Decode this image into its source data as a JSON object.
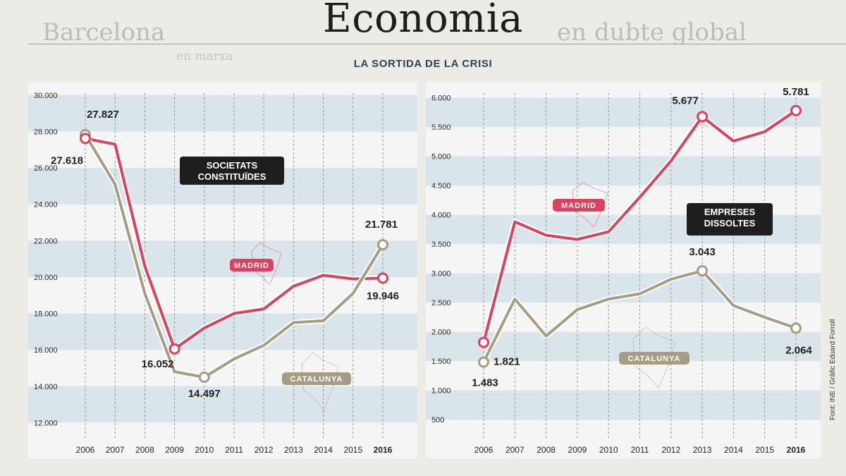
{
  "page": {
    "section_title": "Economia",
    "headline_fragments": [
      "Barcelona",
      "en marxa",
      "en dubte global"
    ],
    "subtitle": "LA SORTIDA DE LA CRISI",
    "credit": "Font: INE / Gràfic Eduard Forroll"
  },
  "chart_data": [
    {
      "type": "line",
      "title": "SOCIETATS CONSTITUÏDES",
      "xlabel": "",
      "ylabel": "",
      "categories": [
        "2006",
        "2007",
        "2008",
        "2009",
        "2010",
        "2011",
        "2012",
        "2013",
        "2014",
        "2015",
        "2016"
      ],
      "yticks": [
        12000,
        14000,
        16000,
        18000,
        20000,
        22000,
        24000,
        26000,
        28000,
        30000
      ],
      "ytick_labels": [
        "12.000",
        "14.000",
        "16.000",
        "18.000",
        "20.000",
        "22.000",
        "24.000",
        "26.000",
        "28.000",
        "30.000"
      ],
      "ylim": [
        11200,
        30500
      ],
      "grid": true,
      "series": [
        {
          "name": "MADRID",
          "color": "#d9435f",
          "values": [
            27618,
            27300,
            20600,
            16052,
            17200,
            18000,
            18250,
            19500,
            20100,
            19900,
            19946
          ]
        },
        {
          "name": "CATALUNYA",
          "color": "#a59e85",
          "values": [
            27827,
            25100,
            19100,
            14800,
            14497,
            15500,
            16250,
            17500,
            17600,
            19100,
            21781
          ]
        }
      ],
      "data_labels": [
        {
          "text": "27.827",
          "series": 1,
          "index": 0
        },
        {
          "text": "27.618",
          "series": 0,
          "index": 0
        },
        {
          "text": "16.052",
          "series": 0,
          "index": 3
        },
        {
          "text": "14.497",
          "series": 1,
          "index": 4
        },
        {
          "text": "21.781",
          "series": 1,
          "index": 10
        },
        {
          "text": "19.946",
          "series": 0,
          "index": 10
        }
      ]
    },
    {
      "type": "line",
      "title": "EMPRESES DISSOLTES",
      "xlabel": "",
      "ylabel": "",
      "categories": [
        "2006",
        "2007",
        "2008",
        "2009",
        "2010",
        "2011",
        "2012",
        "2013",
        "2014",
        "2015",
        "2016"
      ],
      "yticks": [
        500,
        1000,
        1500,
        2000,
        2500,
        3000,
        3500,
        4000,
        4500,
        5000,
        5500,
        6000
      ],
      "ytick_labels": [
        "500",
        "1.000",
        "1.500",
        "2.000",
        "2.500",
        "3.000",
        "3.500",
        "4.000",
        "4.500",
        "5.000",
        "5.500",
        "6.000"
      ],
      "ylim": [
        200,
        6200
      ],
      "grid": true,
      "series": [
        {
          "name": "MADRID",
          "color": "#d9435f",
          "values": [
            1821,
            3880,
            3650,
            3580,
            3710,
            4300,
            4920,
            5677,
            5260,
            5420,
            5781
          ]
        },
        {
          "name": "CATALUNYA",
          "color": "#a59e85",
          "values": [
            1483,
            2560,
            1930,
            2380,
            2560,
            2650,
            2900,
            3043,
            2450,
            2250,
            2064
          ]
        }
      ],
      "data_labels": [
        {
          "text": "1.821",
          "series": 0,
          "index": 0
        },
        {
          "text": "1.483",
          "series": 1,
          "index": 0
        },
        {
          "text": "5.677",
          "series": 0,
          "index": 7
        },
        {
          "text": "5.781",
          "series": 0,
          "index": 10
        },
        {
          "text": "3.043",
          "series": 1,
          "index": 7
        },
        {
          "text": "2.064",
          "series": 1,
          "index": 10
        }
      ]
    }
  ]
}
